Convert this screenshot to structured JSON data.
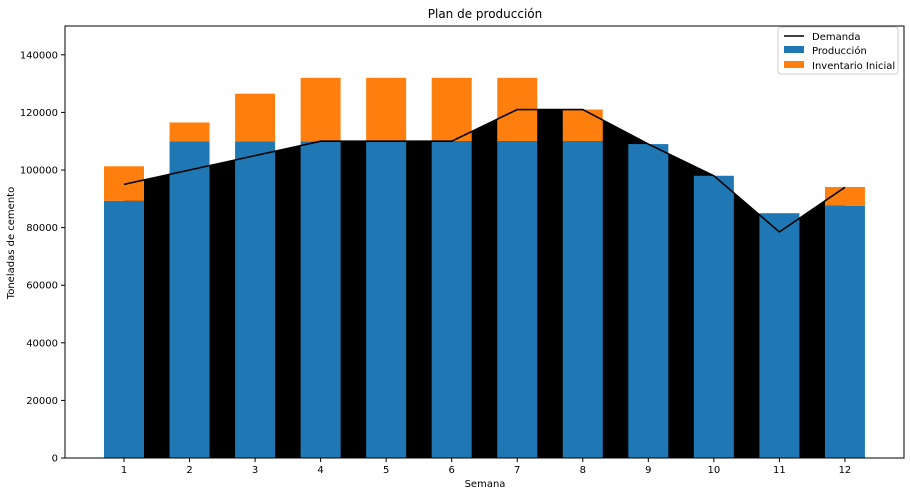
{
  "chart_data": {
    "type": "bar",
    "title": "Plan de producción",
    "xlabel": "Semana",
    "ylabel": "Toneladas de cemento",
    "categories": [
      "1",
      "2",
      "3",
      "4",
      "5",
      "6",
      "7",
      "8",
      "9",
      "10",
      "11",
      "12"
    ],
    "ylim": [
      0,
      150000
    ],
    "yticks": [
      0,
      20000,
      40000,
      60000,
      80000,
      100000,
      120000,
      140000
    ],
    "stacked": true,
    "series": [
      {
        "name": "Producción",
        "type": "bar",
        "color": "#1f77b4",
        "values": [
          89300,
          110000,
          110000,
          110000,
          110000,
          110000,
          110000,
          110000,
          109000,
          98000,
          85000,
          87600
        ]
      },
      {
        "name": "Inventario Inicial",
        "type": "bar",
        "color": "#ff7f0e",
        "values": [
          12000,
          6500,
          16500,
          22000,
          22000,
          22000,
          22000,
          11000,
          0,
          0,
          0,
          6500
        ]
      },
      {
        "name": "Demanda",
        "type": "line",
        "color": "#000000",
        "fill_below": true,
        "values": [
          95000,
          100000,
          105000,
          110000,
          110000,
          110000,
          121000,
          121000,
          109000,
          98000,
          78500,
          94000
        ]
      }
    ],
    "legend": {
      "position": "top-right",
      "order": [
        "Demanda",
        "Producción",
        "Inventario Inicial"
      ]
    },
    "grid": false
  }
}
